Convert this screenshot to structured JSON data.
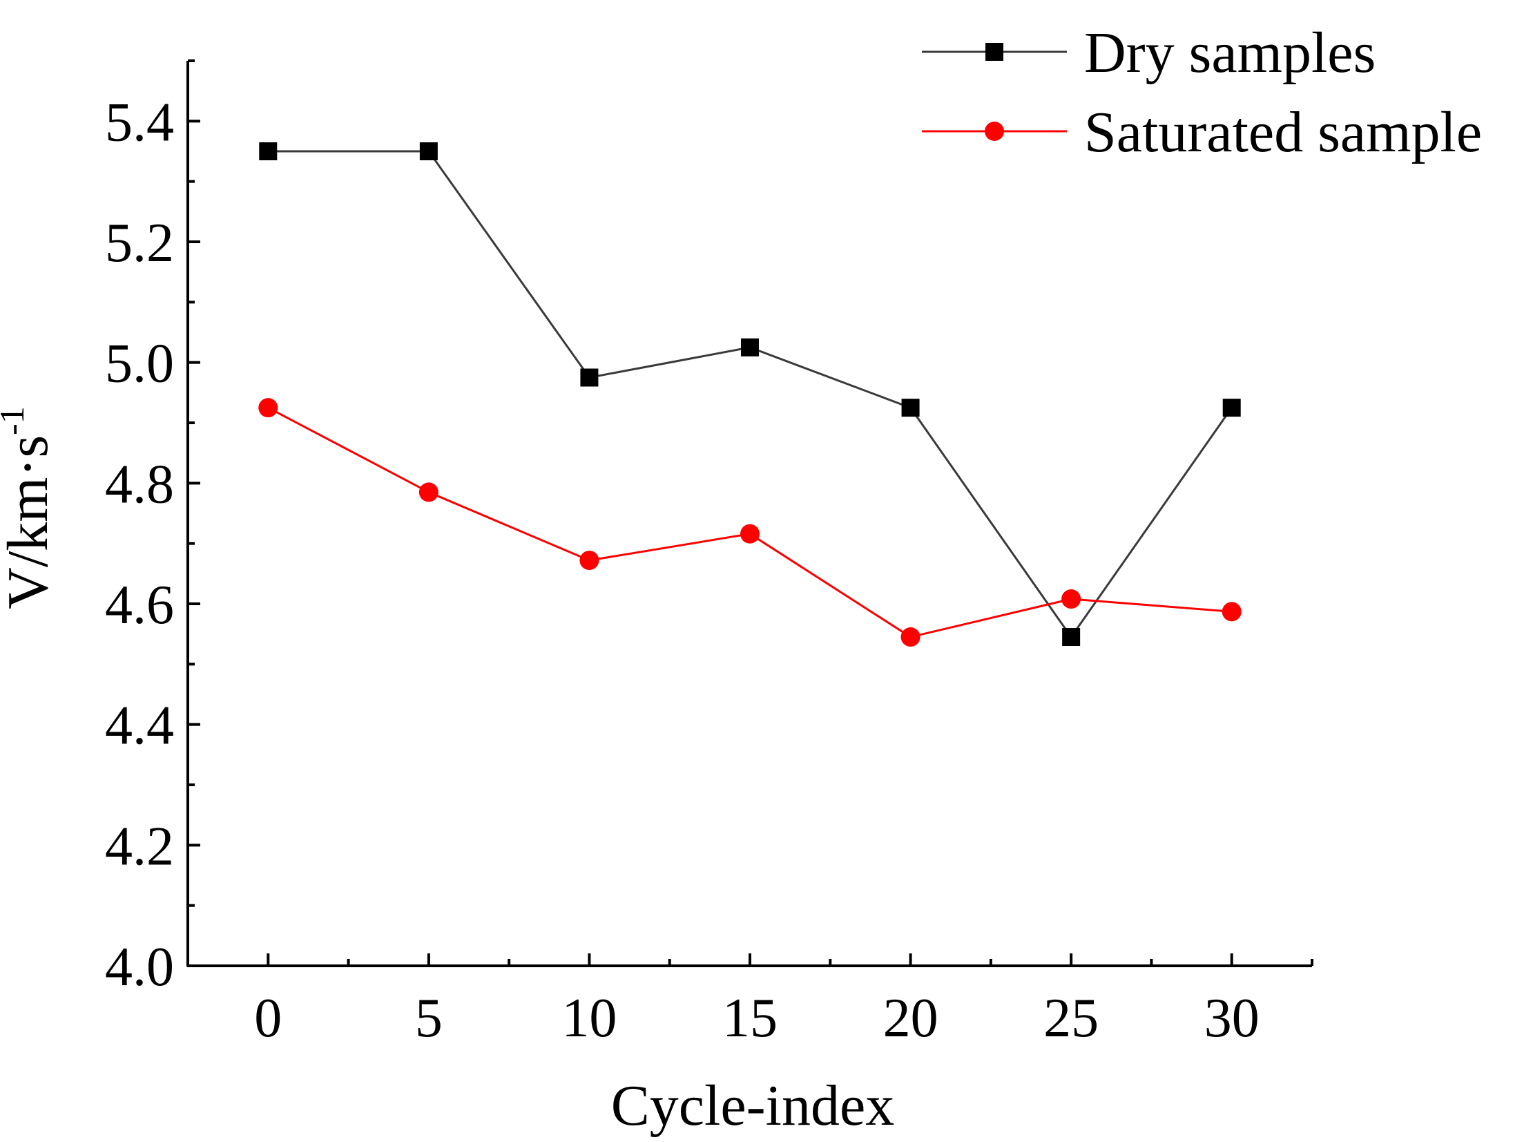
{
  "chart_data": {
    "type": "line",
    "title": "",
    "xlabel": "Cycle-index",
    "ylabel": "V/km·s",
    "ylabel_superscript": "-1",
    "xlim": [
      -2.5,
      32.5
    ],
    "ylim": [
      4.0,
      5.5
    ],
    "x": [
      0,
      5,
      10,
      15,
      20,
      25,
      30
    ],
    "xticks": [
      0,
      5,
      10,
      15,
      20,
      25,
      30
    ],
    "xtick_labels": [
      "0",
      "5",
      "10",
      "15",
      "20",
      "25",
      "30"
    ],
    "yticks": [
      4.0,
      4.2,
      4.4,
      4.6,
      4.8,
      5.0,
      5.2,
      5.4
    ],
    "ytick_labels": [
      "4.0",
      "4.2",
      "4.4",
      "4.6",
      "4.8",
      "5.0",
      "5.2",
      "5.4"
    ],
    "grid": false,
    "legend_position": "top-right",
    "series": [
      {
        "name": "Dry samples",
        "values": [
          5.35,
          5.35,
          4.975,
          5.025,
          4.925,
          4.545,
          4.925
        ],
        "line_color": "#3a3a3a",
        "marker_color": "#000000",
        "marker": "square"
      },
      {
        "name": "Saturated sample",
        "values": [
          4.925,
          4.785,
          4.672,
          4.716,
          4.545,
          4.608,
          4.587
        ],
        "line_color": "#ff0000",
        "marker_color": "#ff0000",
        "marker": "circle"
      }
    ]
  }
}
